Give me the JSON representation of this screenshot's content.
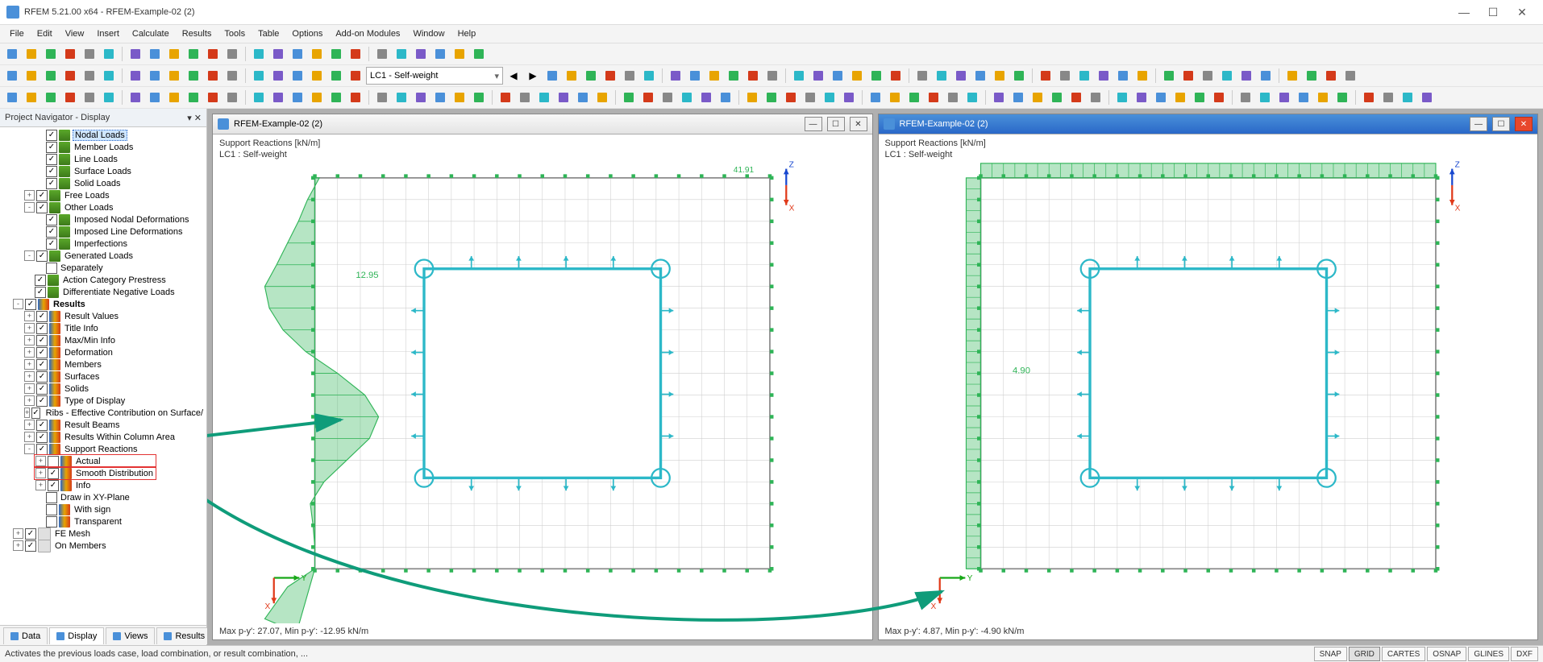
{
  "app": {
    "title": "RFEM 5.21.00 x64 - RFEM-Example-02 (2)",
    "window_buttons": {
      "minimize": "—",
      "maximize": "☐",
      "close": "✕"
    }
  },
  "menus": [
    "File",
    "Edit",
    "View",
    "Insert",
    "Calculate",
    "Results",
    "Tools",
    "Table",
    "Options",
    "Add-on Modules",
    "Window",
    "Help"
  ],
  "lc_combo": "LC1 - Self-weight",
  "nav": {
    "title": "Project Navigator - Display",
    "tabs": [
      "Data",
      "Display",
      "Views",
      "Results"
    ],
    "active_tab": 1,
    "selected_label": "Nodal Loads",
    "highlight_boxes": [
      "Actual",
      "Smooth Distribution"
    ],
    "tree": [
      {
        "indent": 3,
        "check": true,
        "icon": "load",
        "label": "Nodal Loads",
        "selected": true
      },
      {
        "indent": 3,
        "check": true,
        "icon": "load",
        "label": "Member Loads"
      },
      {
        "indent": 3,
        "check": true,
        "icon": "load",
        "label": "Line Loads"
      },
      {
        "indent": 3,
        "check": true,
        "icon": "load",
        "label": "Surface Loads"
      },
      {
        "indent": 3,
        "check": true,
        "icon": "load",
        "label": "Solid Loads"
      },
      {
        "indent": 2,
        "twist": "+",
        "check": true,
        "icon": "load",
        "label": "Free Loads"
      },
      {
        "indent": 2,
        "twist": "-",
        "check": true,
        "icon": "load",
        "label": "Other Loads"
      },
      {
        "indent": 3,
        "check": true,
        "icon": "load",
        "label": "Imposed Nodal Deformations"
      },
      {
        "indent": 3,
        "check": true,
        "icon": "load",
        "label": "Imposed Line Deformations"
      },
      {
        "indent": 3,
        "check": true,
        "icon": "load",
        "label": "Imperfections"
      },
      {
        "indent": 2,
        "twist": "-",
        "check": true,
        "icon": "load",
        "label": "Generated Loads"
      },
      {
        "indent": 3,
        "check": false,
        "icon": "",
        "label": "Separately"
      },
      {
        "indent": 2,
        "check": true,
        "icon": "load",
        "label": "Action Category Prestress"
      },
      {
        "indent": 2,
        "check": true,
        "icon": "load",
        "label": "Differentiate Negative Loads"
      },
      {
        "indent": 1,
        "twist": "-",
        "check": true,
        "icon": "res",
        "label": "Results",
        "bold": true
      },
      {
        "indent": 2,
        "twist": "+",
        "check": true,
        "icon": "res",
        "label": "Result Values"
      },
      {
        "indent": 2,
        "twist": "+",
        "check": true,
        "icon": "res",
        "label": "Title Info"
      },
      {
        "indent": 2,
        "twist": "+",
        "check": true,
        "icon": "res",
        "label": "Max/Min Info"
      },
      {
        "indent": 2,
        "twist": "+",
        "check": true,
        "icon": "res",
        "label": "Deformation"
      },
      {
        "indent": 2,
        "twist": "+",
        "check": true,
        "icon": "res",
        "label": "Members"
      },
      {
        "indent": 2,
        "twist": "+",
        "check": true,
        "icon": "res",
        "label": "Surfaces"
      },
      {
        "indent": 2,
        "twist": "+",
        "check": true,
        "icon": "res",
        "label": "Solids"
      },
      {
        "indent": 2,
        "twist": "+",
        "check": true,
        "icon": "res",
        "label": "Type of Display"
      },
      {
        "indent": 2,
        "twist": "+",
        "check": true,
        "icon": "res",
        "label": "Ribs - Effective Contribution on Surface/"
      },
      {
        "indent": 2,
        "twist": "+",
        "check": true,
        "icon": "res",
        "label": "Result Beams"
      },
      {
        "indent": 2,
        "twist": "+",
        "check": true,
        "icon": "res",
        "label": "Results Within Column Area"
      },
      {
        "indent": 2,
        "twist": "-",
        "check": true,
        "icon": "res",
        "label": "Support Reactions"
      },
      {
        "indent": 3,
        "twist": "+",
        "check": false,
        "icon": "res",
        "label": "Actual",
        "red": true
      },
      {
        "indent": 3,
        "twist": "+",
        "check": true,
        "icon": "res",
        "label": "Smooth Distribution",
        "red": true
      },
      {
        "indent": 3,
        "twist": "+",
        "check": true,
        "icon": "res",
        "label": "Info"
      },
      {
        "indent": 3,
        "check": false,
        "icon": "",
        "label": "Draw in XY-Plane"
      },
      {
        "indent": 3,
        "check": false,
        "icon": "res",
        "label": "With sign"
      },
      {
        "indent": 3,
        "check": false,
        "icon": "res",
        "label": "Transparent"
      },
      {
        "indent": 1,
        "twist": "+",
        "check": true,
        "icon": "generic",
        "label": "FE Mesh"
      },
      {
        "indent": 1,
        "twist": "+",
        "check": true,
        "icon": "generic",
        "label": "On Members"
      }
    ]
  },
  "views": [
    {
      "title": "RFEM-Example-02 (2)",
      "active": false,
      "header": "Support Reactions [kN/m]\nLC1 : Self-weight",
      "footer": "Max p-y': 27.07, Min p-y': -12.95 kN/m",
      "value_label": "12.95",
      "drawing": "actual"
    },
    {
      "title": "RFEM-Example-02 (2)",
      "active": true,
      "header": "Support Reactions [kN/m]\nLC1 : Self-weight",
      "footer": "Max p-y': 4.87, Min p-y': -4.90 kN/m",
      "value_label": "4.90",
      "drawing": "smooth"
    }
  ],
  "status": {
    "text": "Activates the previous loads case, load combination, or result combination, ...",
    "buttons": [
      "SNAP",
      "GRID",
      "CARTES",
      "OSNAP",
      "GLINES",
      "DXF"
    ],
    "active_buttons": [
      "GRID"
    ]
  },
  "colors": {
    "green": "#2fb457",
    "cyan": "#2cb8c8",
    "mesh": "#cfcfcf",
    "axis_x": "#e03a1a",
    "axis_y": "#18a818",
    "axis_z": "#1848d0",
    "teal_arrow": "#0f9c7a",
    "red_box": "#e33333"
  },
  "toolbar_glyphs_row1": [
    "📄",
    "📂",
    "💾",
    "🖶",
    "|",
    "↶",
    "↷",
    "|",
    "✂",
    "📋",
    "📄",
    "|",
    "🔍",
    "🔍",
    "🔍",
    "|",
    "📐",
    "📐",
    "|",
    "⬚",
    "⬚",
    "⬚",
    "⬚",
    "|",
    "◀",
    "▶"
  ],
  "toolbar_glyphs_row2": [
    "LC"
  ],
  "toolbar_glyphs_row3": [
    "⚙",
    "⚙",
    "⚙",
    "|",
    "🧩",
    "🧩",
    "🧩",
    "🧩",
    "|",
    "📊",
    "📊",
    "📊",
    "📊",
    "📊",
    "|",
    "🧩",
    "🧩",
    "🧩",
    "🧩",
    "🧩",
    "🧩",
    "🧩",
    "🧩",
    "🧩",
    "🧩"
  ]
}
